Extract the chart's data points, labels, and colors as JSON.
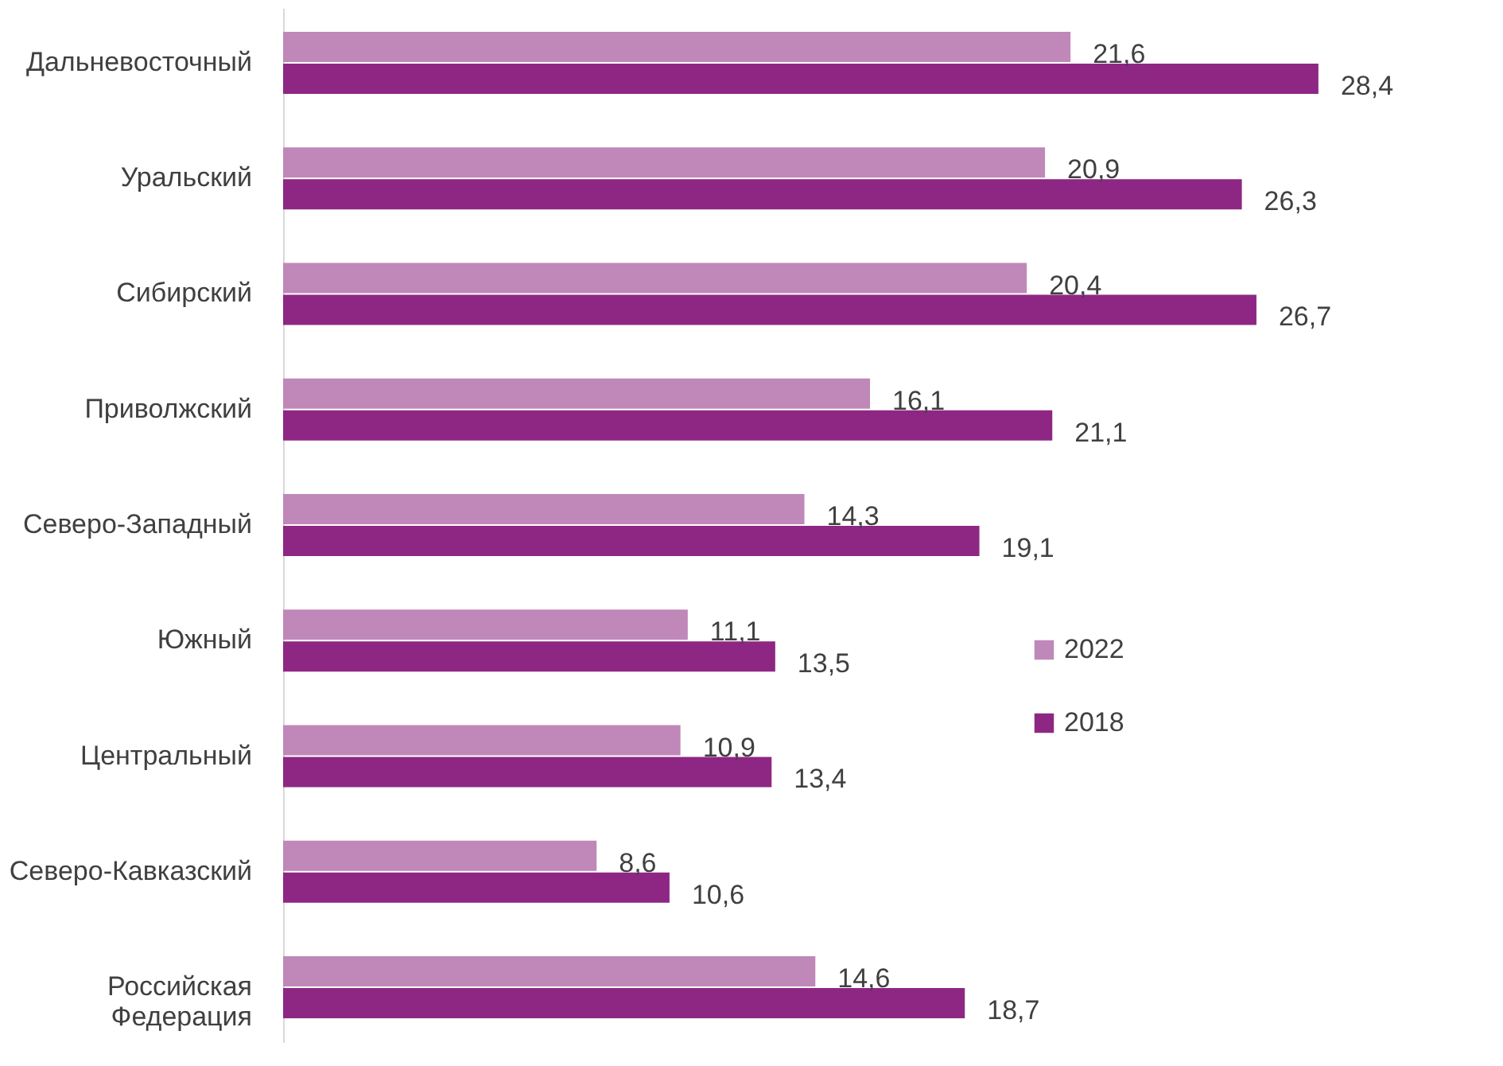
{
  "chart_data": {
    "type": "bar",
    "orientation": "horizontal",
    "categories": [
      "Дальневосточный",
      "Уральский",
      "Сибирский",
      "Приволжский",
      "Северо-Западный",
      "Южный",
      "Центральный",
      "Северо-Кавказский",
      "Российская Федерация"
    ],
    "series": [
      {
        "name": "2022",
        "color": "#bf88b8",
        "values": [
          21.6,
          20.9,
          20.4,
          16.1,
          14.3,
          11.1,
          10.9,
          8.6,
          14.6
        ],
        "value_labels": [
          "21,6",
          "20,9",
          "20,4",
          "16,1",
          "14,3",
          "11,1",
          "10,9",
          "8,6",
          "14,6"
        ]
      },
      {
        "name": "2018",
        "color": "#8e2783",
        "values": [
          28.4,
          26.3,
          26.7,
          21.1,
          19.1,
          13.5,
          13.4,
          10.6,
          18.7
        ],
        "value_labels": [
          "28,4",
          "26,3",
          "26,7",
          "21,1",
          "19,1",
          "13,5",
          "13,4",
          "10,6",
          "18,7"
        ]
      }
    ],
    "legend": "right",
    "grid": false
  }
}
